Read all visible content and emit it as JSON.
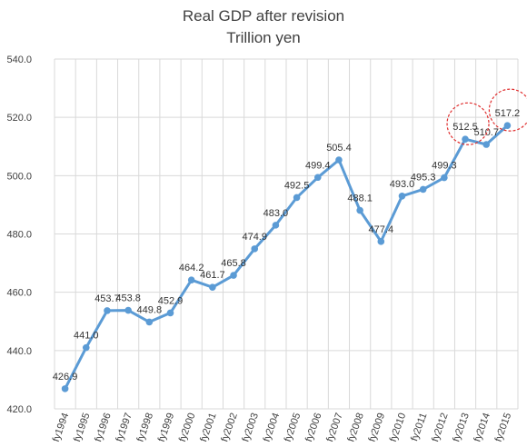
{
  "chart_data": {
    "type": "line",
    "title": "Real GDP after revision",
    "subtitle": "Trillion yen",
    "xlabel": "",
    "ylabel": "",
    "ylim": [
      420,
      540
    ],
    "yticks": [
      420,
      440,
      460,
      480,
      500,
      520,
      540
    ],
    "ytick_labels": [
      "420.0",
      "440.0",
      "460.0",
      "480.0",
      "500.0",
      "520.0",
      "540.0"
    ],
    "grid": true,
    "categories": [
      "fy1994",
      "fy1995",
      "fy1996",
      "fy1997",
      "fy1998",
      "fy1999",
      "fy2000",
      "fy2001",
      "fy2002",
      "fy2003",
      "fy2004",
      "fy2005",
      "fy2006",
      "fy2007",
      "fy2008",
      "fy2009",
      "fy2010",
      "fy2011",
      "fy2012",
      "fy2013",
      "fy2014",
      "fy2015"
    ],
    "values": [
      426.9,
      441.0,
      453.7,
      453.8,
      449.8,
      452.9,
      464.2,
      461.7,
      465.8,
      474.9,
      483.0,
      492.5,
      499.4,
      505.4,
      488.1,
      477.4,
      493.0,
      495.3,
      499.3,
      512.5,
      510.7,
      517.2
    ],
    "value_labels": [
      "426.9",
      "441.0",
      "453.7",
      "453.8",
      "449.8",
      "452.9",
      "464.2",
      "461.7",
      "465.8",
      "474.9",
      "483.0",
      "492.5",
      "499.4",
      "505.4",
      "488.1",
      "477.4",
      "493.0",
      "495.3",
      "499.3",
      "512.5",
      "510.7",
      "517.2"
    ],
    "highlighted_points": [
      "fy2013",
      "fy2015"
    ],
    "colors": {
      "line": "#5b9bd5",
      "highlight_circle": "#e03030"
    }
  }
}
